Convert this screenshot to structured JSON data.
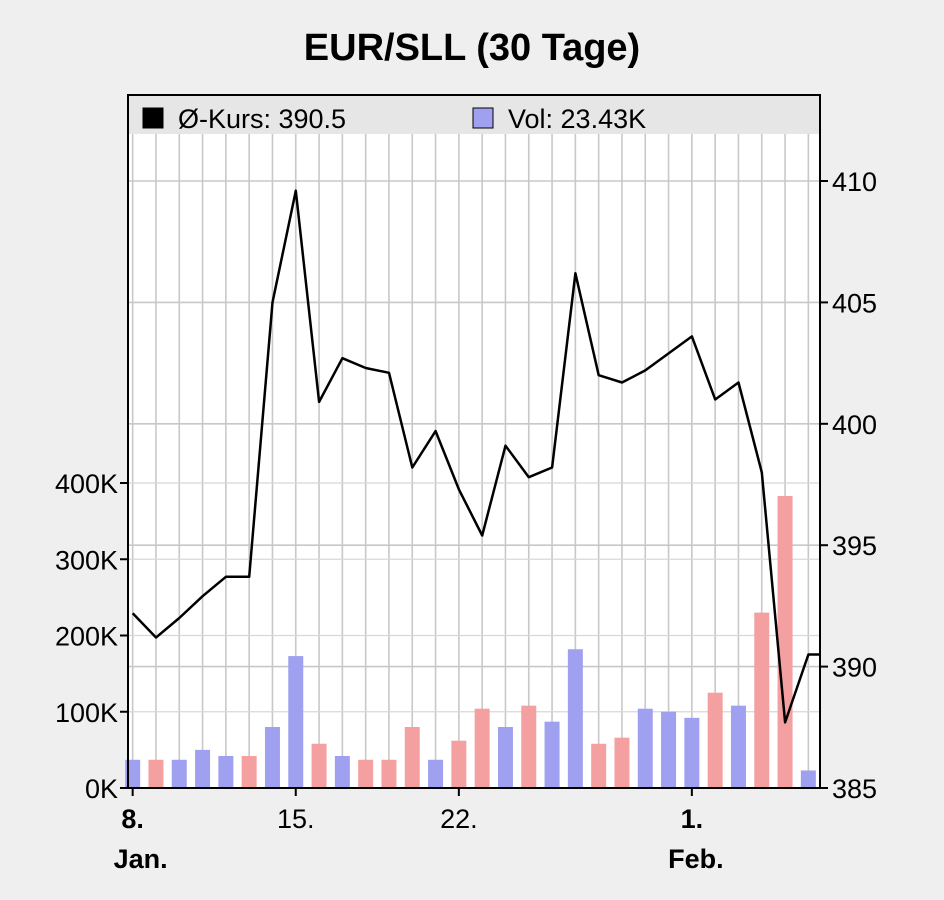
{
  "chart_data": {
    "type": "bar+line",
    "title": "EUR/SLL (30 Tage)",
    "legend": {
      "placement": "top",
      "items": [
        {
          "label": "Ø-Kurs: 390.5",
          "color": "#000000"
        },
        {
          "label": "Vol: 23.43K",
          "color": "#a0a0f0"
        }
      ]
    },
    "price_axis": {
      "side": "right",
      "min": 385,
      "max": 410,
      "ticks": [
        "385",
        "390",
        "395",
        "400",
        "405",
        "410"
      ]
    },
    "volume_axis": {
      "side": "left",
      "min": 0,
      "max": 400000,
      "ticks": [
        "0K",
        "100K",
        "200K",
        "300K",
        "400K"
      ]
    },
    "x_ticks": [
      {
        "day": 8,
        "label": "8.",
        "bold": true,
        "sub": "Jan."
      },
      {
        "day": 15,
        "label": "15.",
        "bold": false,
        "sub": ""
      },
      {
        "day": 22,
        "label": "22.",
        "bold": false,
        "sub": ""
      },
      {
        "day": 32,
        "label": "1.",
        "bold": true,
        "sub": "Feb."
      }
    ],
    "day_range": [
      7.8,
      37.5
    ],
    "series": [
      {
        "name": "Ø-Kurs",
        "type": "line",
        "color": "#000000",
        "x": [
          8,
          9,
          10,
          11,
          12,
          13,
          14,
          15,
          16,
          17,
          18,
          19,
          20,
          21,
          22,
          23,
          24,
          25,
          26,
          27,
          28,
          29,
          30,
          31,
          32,
          33,
          34,
          35,
          36,
          37,
          37.5
        ],
        "y": [
          392.2,
          391.2,
          392.0,
          392.9,
          393.7,
          393.7,
          405.0,
          409.6,
          400.9,
          402.7,
          402.3,
          402.1,
          398.2,
          399.7,
          397.3,
          395.4,
          399.1,
          397.8,
          398.2,
          406.2,
          402.0,
          401.7,
          402.2,
          402.9,
          403.6,
          401.0,
          401.7,
          398.0,
          387.7,
          390.5,
          390.5
        ]
      },
      {
        "name": "Vol",
        "type": "bar",
        "x": [
          8,
          9,
          10,
          11,
          12,
          13,
          14,
          15,
          16,
          17,
          18,
          19,
          20,
          21,
          22,
          23,
          24,
          25,
          26,
          27,
          28,
          29,
          30,
          31,
          32,
          33,
          34,
          35,
          36,
          37
        ],
        "values": [
          37000,
          37000,
          37000,
          50000,
          42000,
          42000,
          80000,
          173000,
          58000,
          42000,
          37000,
          37000,
          80000,
          37000,
          62000,
          104000,
          80000,
          108000,
          87000,
          182000,
          58000,
          66000,
          104000,
          100000,
          92000,
          125000,
          108000,
          230000,
          383000,
          23000
        ],
        "colors": [
          "#a0a0f0",
          "#f4a0a0",
          "#a0a0f0",
          "#a0a0f0",
          "#a0a0f0",
          "#f4a0a0",
          "#a0a0f0",
          "#a0a0f0",
          "#f4a0a0",
          "#a0a0f0",
          "#f4a0a0",
          "#f4a0a0",
          "#f4a0a0",
          "#a0a0f0",
          "#f4a0a0",
          "#f4a0a0",
          "#a0a0f0",
          "#f4a0a0",
          "#a0a0f0",
          "#a0a0f0",
          "#f4a0a0",
          "#f4a0a0",
          "#a0a0f0",
          "#a0a0f0",
          "#a0a0f0",
          "#f4a0a0",
          "#a0a0f0",
          "#f4a0a0",
          "#f4a0a0",
          "#a0a0f0"
        ]
      }
    ],
    "grid": true
  }
}
